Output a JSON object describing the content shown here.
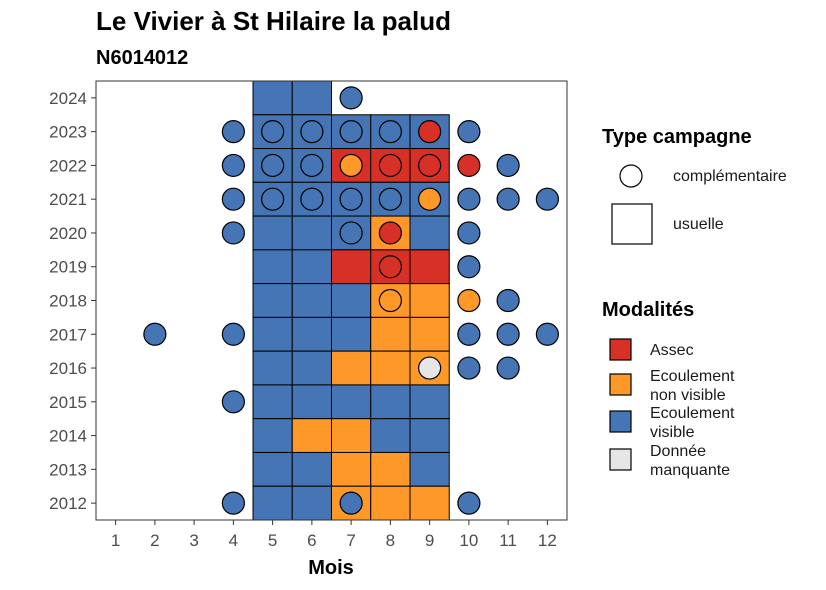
{
  "chart_data": {
    "type": "heatmap",
    "title": "Le Vivier à St Hilaire la palud",
    "subtitle": "N6014012",
    "xlabel": "Mois",
    "ylabel": "",
    "x_ticks": [
      "1",
      "2",
      "3",
      "4",
      "5",
      "6",
      "7",
      "8",
      "9",
      "10",
      "11",
      "12"
    ],
    "y_ticks": [
      "2012",
      "2013",
      "2014",
      "2015",
      "2016",
      "2017",
      "2018",
      "2019",
      "2020",
      "2021",
      "2022",
      "2023",
      "2024"
    ],
    "xlim": [
      0.5,
      12.5
    ],
    "ylim": [
      2011.5,
      2024.5
    ],
    "modalities": [
      {
        "key": "assec",
        "label_lines": [
          "Assec"
        ],
        "color": "#d73027"
      },
      {
        "key": "nonvis",
        "label_lines": [
          "Ecoulement",
          "non visible"
        ],
        "color": "#fe9929"
      },
      {
        "key": "vis",
        "label_lines": [
          "Ecoulement",
          "visible"
        ],
        "color": "#4575b4"
      },
      {
        "key": "missing",
        "label_lines": [
          "Donnée",
          "manquante"
        ],
        "color": "#e6e6e6"
      }
    ],
    "legend_shape_title": "Type campagne",
    "legend_shape_items": [
      {
        "shape": "circle",
        "label": "complémentaire"
      },
      {
        "shape": "square",
        "label": "usuelle"
      }
    ],
    "legend_fill_title": "Modalités",
    "usuelle": [
      {
        "year": 2024,
        "month": 5,
        "mod": "vis"
      },
      {
        "year": 2024,
        "month": 6,
        "mod": "vis"
      },
      {
        "year": 2023,
        "month": 5,
        "mod": "vis"
      },
      {
        "year": 2023,
        "month": 6,
        "mod": "vis"
      },
      {
        "year": 2023,
        "month": 7,
        "mod": "vis"
      },
      {
        "year": 2023,
        "month": 8,
        "mod": "vis"
      },
      {
        "year": 2023,
        "month": 9,
        "mod": "vis"
      },
      {
        "year": 2022,
        "month": 5,
        "mod": "vis"
      },
      {
        "year": 2022,
        "month": 6,
        "mod": "vis"
      },
      {
        "year": 2022,
        "month": 7,
        "mod": "assec"
      },
      {
        "year": 2022,
        "month": 8,
        "mod": "assec"
      },
      {
        "year": 2022,
        "month": 9,
        "mod": "assec"
      },
      {
        "year": 2021,
        "month": 5,
        "mod": "vis"
      },
      {
        "year": 2021,
        "month": 6,
        "mod": "vis"
      },
      {
        "year": 2021,
        "month": 7,
        "mod": "vis"
      },
      {
        "year": 2021,
        "month": 8,
        "mod": "vis"
      },
      {
        "year": 2021,
        "month": 9,
        "mod": "vis"
      },
      {
        "year": 2020,
        "month": 5,
        "mod": "vis"
      },
      {
        "year": 2020,
        "month": 6,
        "mod": "vis"
      },
      {
        "year": 2020,
        "month": 7,
        "mod": "vis"
      },
      {
        "year": 2020,
        "month": 8,
        "mod": "nonvis"
      },
      {
        "year": 2020,
        "month": 9,
        "mod": "vis"
      },
      {
        "year": 2019,
        "month": 5,
        "mod": "vis"
      },
      {
        "year": 2019,
        "month": 6,
        "mod": "vis"
      },
      {
        "year": 2019,
        "month": 7,
        "mod": "assec"
      },
      {
        "year": 2019,
        "month": 8,
        "mod": "assec"
      },
      {
        "year": 2019,
        "month": 9,
        "mod": "assec"
      },
      {
        "year": 2018,
        "month": 5,
        "mod": "vis"
      },
      {
        "year": 2018,
        "month": 6,
        "mod": "vis"
      },
      {
        "year": 2018,
        "month": 7,
        "mod": "vis"
      },
      {
        "year": 2018,
        "month": 8,
        "mod": "nonvis"
      },
      {
        "year": 2018,
        "month": 9,
        "mod": "nonvis"
      },
      {
        "year": 2017,
        "month": 5,
        "mod": "vis"
      },
      {
        "year": 2017,
        "month": 6,
        "mod": "vis"
      },
      {
        "year": 2017,
        "month": 7,
        "mod": "vis"
      },
      {
        "year": 2017,
        "month": 8,
        "mod": "nonvis"
      },
      {
        "year": 2017,
        "month": 9,
        "mod": "nonvis"
      },
      {
        "year": 2016,
        "month": 5,
        "mod": "vis"
      },
      {
        "year": 2016,
        "month": 6,
        "mod": "vis"
      },
      {
        "year": 2016,
        "month": 7,
        "mod": "nonvis"
      },
      {
        "year": 2016,
        "month": 8,
        "mod": "nonvis"
      },
      {
        "year": 2016,
        "month": 9,
        "mod": "nonvis"
      },
      {
        "year": 2015,
        "month": 5,
        "mod": "vis"
      },
      {
        "year": 2015,
        "month": 6,
        "mod": "vis"
      },
      {
        "year": 2015,
        "month": 7,
        "mod": "vis"
      },
      {
        "year": 2015,
        "month": 8,
        "mod": "vis"
      },
      {
        "year": 2015,
        "month": 9,
        "mod": "vis"
      },
      {
        "year": 2014,
        "month": 5,
        "mod": "vis"
      },
      {
        "year": 2014,
        "month": 6,
        "mod": "nonvis"
      },
      {
        "year": 2014,
        "month": 7,
        "mod": "nonvis"
      },
      {
        "year": 2014,
        "month": 8,
        "mod": "vis"
      },
      {
        "year": 2014,
        "month": 9,
        "mod": "vis"
      },
      {
        "year": 2013,
        "month": 5,
        "mod": "vis"
      },
      {
        "year": 2013,
        "month": 6,
        "mod": "vis"
      },
      {
        "year": 2013,
        "month": 7,
        "mod": "nonvis"
      },
      {
        "year": 2013,
        "month": 8,
        "mod": "nonvis"
      },
      {
        "year": 2013,
        "month": 9,
        "mod": "vis"
      },
      {
        "year": 2012,
        "month": 5,
        "mod": "vis"
      },
      {
        "year": 2012,
        "month": 6,
        "mod": "vis"
      },
      {
        "year": 2012,
        "month": 7,
        "mod": "nonvis"
      },
      {
        "year": 2012,
        "month": 8,
        "mod": "nonvis"
      },
      {
        "year": 2012,
        "month": 9,
        "mod": "nonvis"
      }
    ],
    "complementaire": [
      {
        "year": 2024,
        "month": 7,
        "mod": "vis"
      },
      {
        "year": 2023,
        "month": 4,
        "mod": "vis"
      },
      {
        "year": 2023,
        "month": 5,
        "mod": "vis"
      },
      {
        "year": 2023,
        "month": 6,
        "mod": "vis"
      },
      {
        "year": 2023,
        "month": 7,
        "mod": "vis"
      },
      {
        "year": 2023,
        "month": 8,
        "mod": "vis"
      },
      {
        "year": 2023,
        "month": 9,
        "mod": "assec"
      },
      {
        "year": 2023,
        "month": 10,
        "mod": "vis"
      },
      {
        "year": 2022,
        "month": 4,
        "mod": "vis"
      },
      {
        "year": 2022,
        "month": 5,
        "mod": "vis"
      },
      {
        "year": 2022,
        "month": 6,
        "mod": "vis"
      },
      {
        "year": 2022,
        "month": 7,
        "mod": "nonvis"
      },
      {
        "year": 2022,
        "month": 8,
        "mod": "assec"
      },
      {
        "year": 2022,
        "month": 9,
        "mod": "assec"
      },
      {
        "year": 2022,
        "month": 10,
        "mod": "assec"
      },
      {
        "year": 2022,
        "month": 11,
        "mod": "vis"
      },
      {
        "year": 2021,
        "month": 4,
        "mod": "vis"
      },
      {
        "year": 2021,
        "month": 5,
        "mod": "vis"
      },
      {
        "year": 2021,
        "month": 6,
        "mod": "vis"
      },
      {
        "year": 2021,
        "month": 7,
        "mod": "vis"
      },
      {
        "year": 2021,
        "month": 8,
        "mod": "vis"
      },
      {
        "year": 2021,
        "month": 9,
        "mod": "nonvis"
      },
      {
        "year": 2021,
        "month": 10,
        "mod": "vis"
      },
      {
        "year": 2021,
        "month": 11,
        "mod": "vis"
      },
      {
        "year": 2021,
        "month": 12,
        "mod": "vis"
      },
      {
        "year": 2020,
        "month": 4,
        "mod": "vis"
      },
      {
        "year": 2020,
        "month": 7,
        "mod": "vis"
      },
      {
        "year": 2020,
        "month": 8,
        "mod": "assec"
      },
      {
        "year": 2020,
        "month": 10,
        "mod": "vis"
      },
      {
        "year": 2019,
        "month": 8,
        "mod": "assec"
      },
      {
        "year": 2019,
        "month": 10,
        "mod": "vis"
      },
      {
        "year": 2018,
        "month": 8,
        "mod": "nonvis"
      },
      {
        "year": 2018,
        "month": 10,
        "mod": "nonvis"
      },
      {
        "year": 2018,
        "month": 11,
        "mod": "vis"
      },
      {
        "year": 2017,
        "month": 2,
        "mod": "vis"
      },
      {
        "year": 2017,
        "month": 4,
        "mod": "vis"
      },
      {
        "year": 2017,
        "month": 10,
        "mod": "vis"
      },
      {
        "year": 2017,
        "month": 11,
        "mod": "vis"
      },
      {
        "year": 2017,
        "month": 12,
        "mod": "vis"
      },
      {
        "year": 2016,
        "month": 9,
        "mod": "missing"
      },
      {
        "year": 2016,
        "month": 10,
        "mod": "vis"
      },
      {
        "year": 2016,
        "month": 11,
        "mod": "vis"
      },
      {
        "year": 2015,
        "month": 4,
        "mod": "vis"
      },
      {
        "year": 2012,
        "month": 4,
        "mod": "vis"
      },
      {
        "year": 2012,
        "month": 7,
        "mod": "vis"
      },
      {
        "year": 2012,
        "month": 10,
        "mod": "vis"
      }
    ]
  }
}
